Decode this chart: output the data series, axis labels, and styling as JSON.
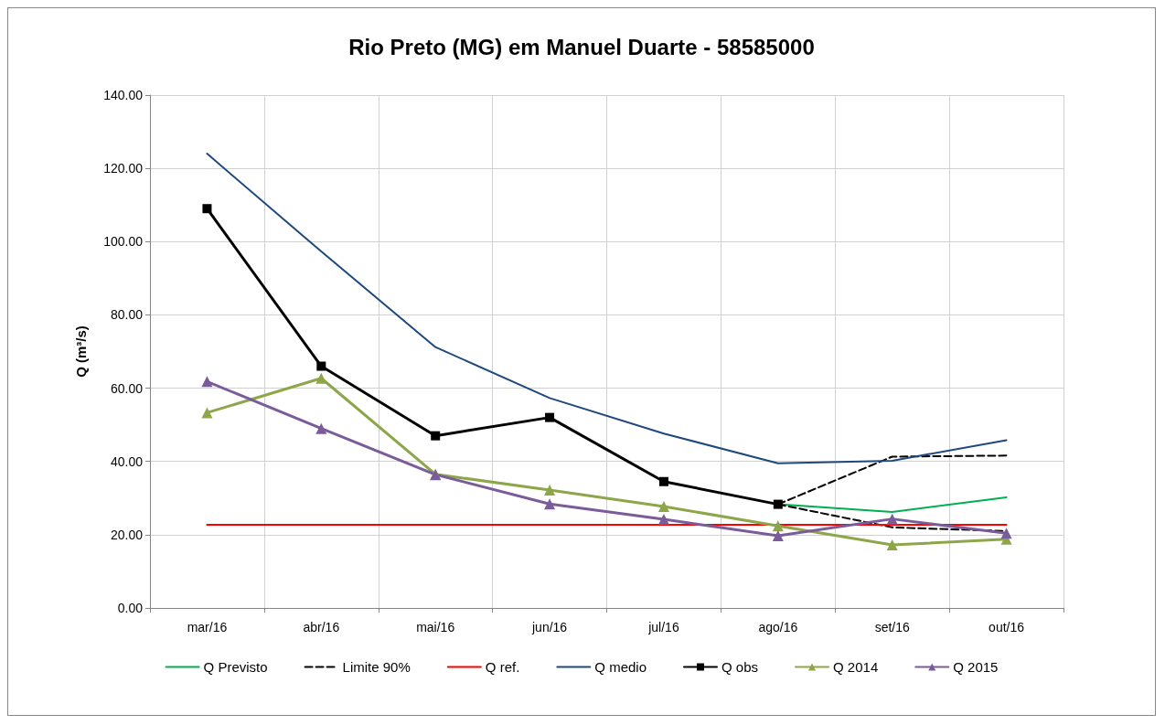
{
  "chart_data": {
    "type": "line",
    "title": "Rio Preto (MG) em Manuel Duarte - 58585000",
    "ylabel": "Q (m³/s)",
    "categories": [
      "mar/16",
      "abr/16",
      "mai/16",
      "jun/16",
      "jul/16",
      "ago/16",
      "set/16",
      "out/16"
    ],
    "ylim": [
      0,
      140
    ],
    "yticks": [
      {
        "value": 0,
        "label": "0.00"
      },
      {
        "value": 20,
        "label": "20.00"
      },
      {
        "value": 40,
        "label": "40.00"
      },
      {
        "value": 60,
        "label": "60.00"
      },
      {
        "value": 80,
        "label": "80.00"
      },
      {
        "value": 100,
        "label": "100.00"
      },
      {
        "value": 120,
        "label": "120.00"
      },
      {
        "value": 140,
        "label": "140.00"
      }
    ],
    "grid": true,
    "legend": "bottom",
    "series": [
      {
        "name": "Q Previsto",
        "color": "#00b050",
        "marker": "none",
        "line_style": "solid",
        "values": [
          null,
          null,
          null,
          null,
          null,
          28.3,
          26.2,
          30.2
        ]
      },
      {
        "name": "Limite 90%",
        "color": "#000000",
        "marker": "none",
        "line_style": "dashed",
        "values": [
          null,
          null,
          null,
          null,
          null,
          28.3,
          41.3,
          41.6
        ]
      },
      {
        "color": "#000000",
        "marker": "none",
        "line_style": "dashed",
        "values": [
          null,
          null,
          null,
          null,
          null,
          28.3,
          22.0,
          21.0
        ]
      },
      {
        "name": "Q ref.",
        "color": "#ff0000",
        "marker": "none",
        "line_style": "solid",
        "values": [
          22.7,
          22.7,
          22.7,
          22.7,
          22.7,
          22.7,
          22.7,
          22.7
        ]
      },
      {
        "name": "Q medio",
        "color": "#1f497d",
        "marker": "none",
        "line_style": "solid",
        "values": [
          124.0,
          97.3,
          71.2,
          57.3,
          47.6,
          39.5,
          40.2,
          45.8
        ]
      },
      {
        "name": "Q obs",
        "color": "#000000",
        "marker": "square",
        "line_style": "solid",
        "values": [
          109.0,
          66.0,
          47.0,
          52.0,
          34.5,
          28.3,
          null,
          null
        ]
      },
      {
        "name": "Q 2014",
        "color": "#8ea64a",
        "marker": "triangle",
        "line_style": "solid",
        "values": [
          53.3,
          62.7,
          36.5,
          32.2,
          27.7,
          22.4,
          17.2,
          18.8
        ]
      },
      {
        "name": "Q 2015",
        "color": "#7a5c9a",
        "marker": "triangle",
        "line_style": "solid",
        "values": [
          61.8,
          49.0,
          36.4,
          28.4,
          24.2,
          19.7,
          24.3,
          20.4
        ]
      }
    ]
  }
}
